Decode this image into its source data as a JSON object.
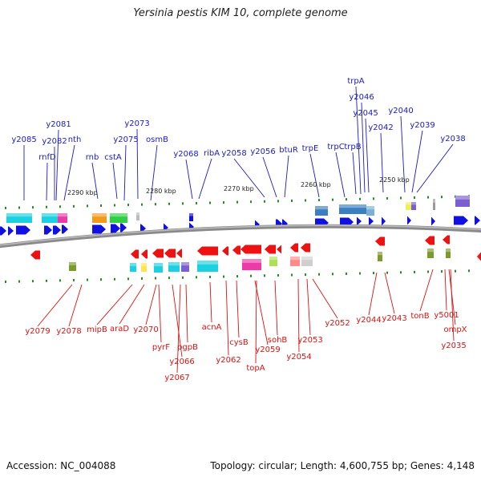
{
  "header": {
    "title": "Yersinia pestis KIM 10, complete genome"
  },
  "footer": {
    "accession": "Accession: NC_004088",
    "topology": "Topology: circular; Length: 4,600,755 bp; Genes: 4,148"
  },
  "colors": {
    "top_label": "#1a1acc",
    "bottom_label": "#dd1111",
    "forward_arrow": "#1010e0",
    "reverse_arrow": "#ee1111",
    "backbone": "#6b6b6b"
  },
  "scale_marks": [
    "2290 kbp",
    "2280 kbp",
    "2270 kbp",
    "2260 kbp",
    "2250 kbp"
  ],
  "top_genes": [
    "y2085",
    "rnfD",
    "y2082",
    "y2081",
    "nth",
    "rnb",
    "cstA",
    "y2075",
    "y2073",
    "osmB",
    "y2068",
    "ribA",
    "y2058",
    "y2056",
    "btuR",
    "trpE",
    "trpC",
    "trpB",
    "trpA",
    "y2046",
    "y2045",
    "y2042",
    "y2040",
    "y2039",
    "y2038"
  ],
  "bottom_genes": [
    "y2079",
    "y2078",
    "mipB",
    "araD",
    "y2070",
    "pyrF",
    "y2066",
    "y2067",
    "pgpB",
    "acnA",
    "y2062",
    "cysB",
    "y2059",
    "topA",
    "sohB",
    "y2054",
    "y2053",
    "y2052",
    "y2044",
    "y2043",
    "tonB",
    "y5001",
    "ompX",
    "y2035"
  ]
}
